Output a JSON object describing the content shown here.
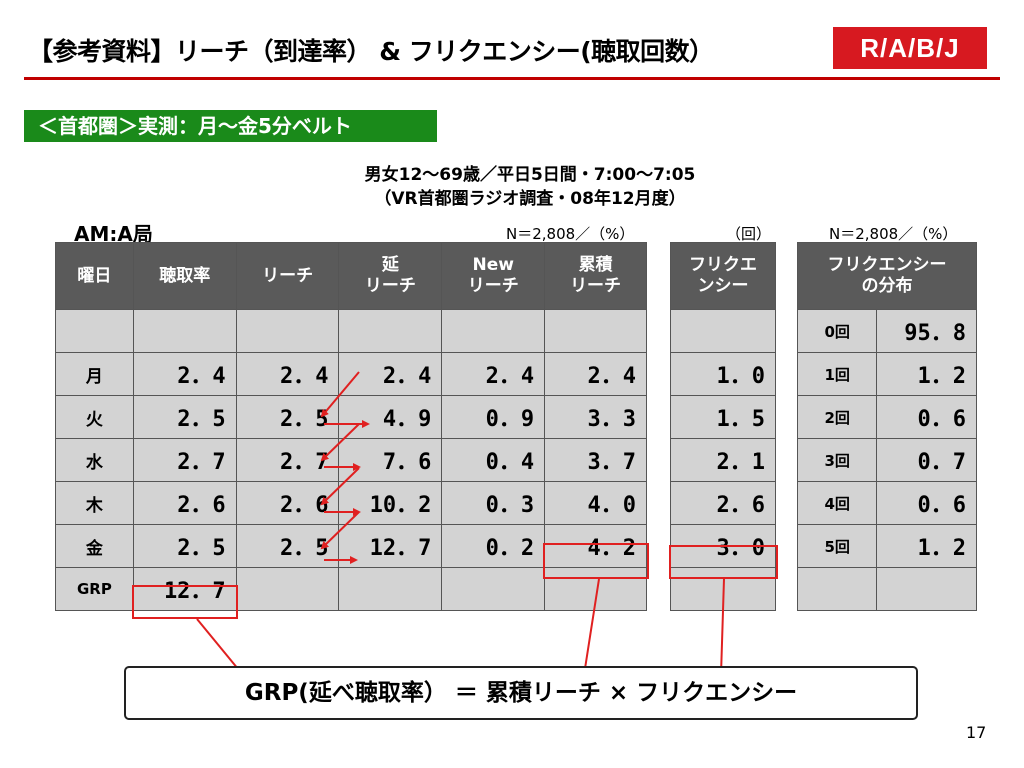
{
  "header": {
    "title": "【参考資料】リーチ（到達率） & フリクエンシー(聴取回数）",
    "logo_text": "R/A/B/J",
    "badge": "＜首都圏＞実測：月～金5分ベルト",
    "subtitle_line1": "男女12～69歳／平日5日間・7:00～7:05",
    "subtitle_line2": "（VR首都圏ラジオ調査・08年12月度）"
  },
  "station_label": "AM:A局",
  "notes": {
    "main_n": "N＝2,808／（%）",
    "freq_unit": "（回）",
    "dist_n": "N＝2,808／（%）"
  },
  "main_table": {
    "headers": [
      "曜日",
      "聴取率",
      "リーチ",
      "延\nリーチ",
      "New\nリーチ",
      "累積\nリーチ"
    ],
    "rows": [
      [
        "",
        "",
        "",
        "",
        "",
        ""
      ],
      [
        "月",
        "2．4",
        "2．4",
        "2．4",
        "2．4",
        "2．4"
      ],
      [
        "火",
        "2．5",
        "2．5",
        "4．9",
        "0．9",
        "3．3"
      ],
      [
        "水",
        "2．7",
        "2．7",
        "7．6",
        "0．4",
        "3．7"
      ],
      [
        "木",
        "2．6",
        "2．6",
        "10．2",
        "0．3",
        "4．0"
      ],
      [
        "金",
        "2．5",
        "2．5",
        "12．7",
        "0．2",
        "4．2"
      ],
      [
        "GRP",
        "12．7",
        "",
        "",
        "",
        ""
      ]
    ]
  },
  "freq_table": {
    "header": "フリクエ\nンシー",
    "values": [
      "",
      "1．0",
      "1．5",
      "2．1",
      "2．6",
      "3．0",
      ""
    ]
  },
  "dist_table": {
    "header": "フリクエンシー\nの分布",
    "rows": [
      [
        "0回",
        "95．8"
      ],
      [
        "1回",
        "1．2"
      ],
      [
        "2回",
        "0．6"
      ],
      [
        "3回",
        "0．7"
      ],
      [
        "4回",
        "0．6"
      ],
      [
        "5回",
        "1．2"
      ],
      [
        "",
        ""
      ]
    ]
  },
  "formula": "GRP(延べ聴取率） ＝ 累積リーチ × フリクエンシー",
  "page_number": "17",
  "colors": {
    "title_rule": "#c00000",
    "logo_bg": "#d71920",
    "badge_bg": "#1a8a1a",
    "header_bg": "#5a5a5a",
    "cell_bg": "#d3d3d3",
    "highlight": "#e02020"
  }
}
